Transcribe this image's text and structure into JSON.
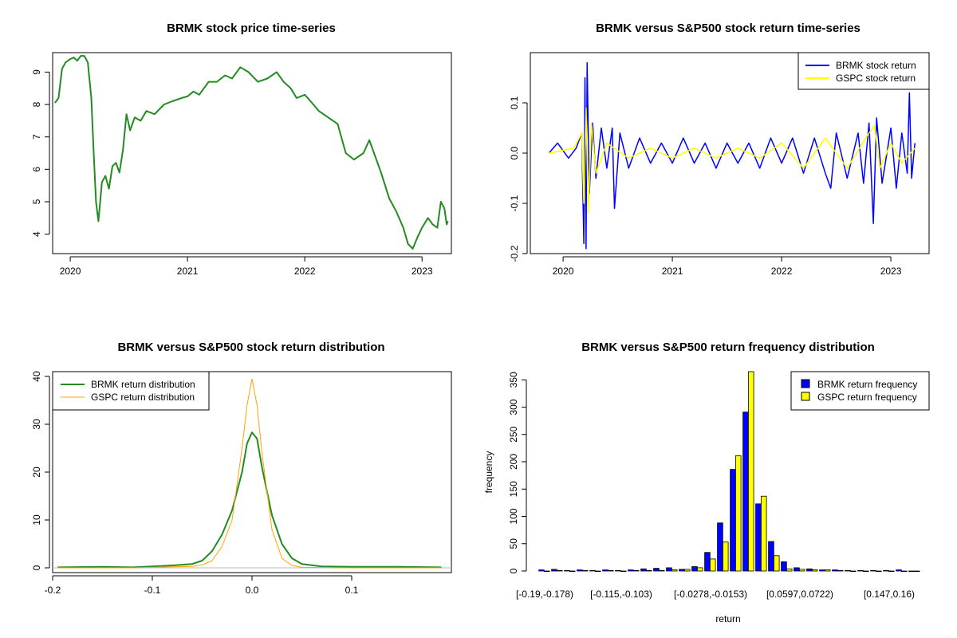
{
  "chart_data": [
    {
      "type": "line",
      "title": "BRMK stock price time-series",
      "xlabel": "",
      "ylabel": "",
      "xlim": [
        2019.85,
        2023.25
      ],
      "ylim": [
        3.4,
        9.6
      ],
      "x_ticks": [
        2020,
        2021,
        2022,
        2023
      ],
      "x_tick_labels": [
        "2020",
        "2021",
        "2022",
        "2023"
      ],
      "y_ticks": [
        4,
        5,
        6,
        7,
        8,
        9
      ],
      "y_tick_labels": [
        "4",
        "5",
        "6",
        "7",
        "8",
        "9"
      ],
      "series": [
        {
          "name": "BRMK price",
          "color": "#228B22",
          "points": [
            [
              2019.87,
              8.05
            ],
            [
              2019.9,
              8.2
            ],
            [
              2019.93,
              9.1
            ],
            [
              2019.96,
              9.3
            ],
            [
              2020.0,
              9.4
            ],
            [
              2020.03,
              9.45
            ],
            [
              2020.06,
              9.35
            ],
            [
              2020.09,
              9.5
            ],
            [
              2020.12,
              9.5
            ],
            [
              2020.15,
              9.3
            ],
            [
              2020.18,
              8.2
            ],
            [
              2020.2,
              6.5
            ],
            [
              2020.22,
              5.0
            ],
            [
              2020.24,
              4.4
            ],
            [
              2020.27,
              5.6
            ],
            [
              2020.3,
              5.8
            ],
            [
              2020.33,
              5.4
            ],
            [
              2020.36,
              6.1
            ],
            [
              2020.39,
              6.2
            ],
            [
              2020.42,
              5.9
            ],
            [
              2020.45,
              6.6
            ],
            [
              2020.48,
              7.7
            ],
            [
              2020.51,
              7.2
            ],
            [
              2020.55,
              7.6
            ],
            [
              2020.6,
              7.5
            ],
            [
              2020.65,
              7.8
            ],
            [
              2020.72,
              7.7
            ],
            [
              2020.8,
              8.0
            ],
            [
              2020.87,
              8.1
            ],
            [
              2020.95,
              8.2
            ],
            [
              2021.0,
              8.25
            ],
            [
              2021.05,
              8.4
            ],
            [
              2021.1,
              8.3
            ],
            [
              2021.18,
              8.7
            ],
            [
              2021.25,
              8.7
            ],
            [
              2021.32,
              8.9
            ],
            [
              2021.38,
              8.8
            ],
            [
              2021.45,
              9.15
            ],
            [
              2021.52,
              9.0
            ],
            [
              2021.6,
              8.7
            ],
            [
              2021.68,
              8.8
            ],
            [
              2021.76,
              9.0
            ],
            [
              2021.82,
              8.7
            ],
            [
              2021.88,
              8.5
            ],
            [
              2021.93,
              8.2
            ],
            [
              2022.0,
              8.3
            ],
            [
              2022.05,
              8.1
            ],
            [
              2022.12,
              7.8
            ],
            [
              2022.2,
              7.6
            ],
            [
              2022.28,
              7.4
            ],
            [
              2022.35,
              6.5
            ],
            [
              2022.42,
              6.3
            ],
            [
              2022.5,
              6.5
            ],
            [
              2022.55,
              6.9
            ],
            [
              2022.58,
              6.6
            ],
            [
              2022.65,
              5.9
            ],
            [
              2022.72,
              5.1
            ],
            [
              2022.78,
              4.7
            ],
            [
              2022.84,
              4.2
            ],
            [
              2022.88,
              3.7
            ],
            [
              2022.92,
              3.55
            ],
            [
              2022.96,
              3.9
            ],
            [
              2023.0,
              4.2
            ],
            [
              2023.05,
              4.5
            ],
            [
              2023.09,
              4.3
            ],
            [
              2023.13,
              4.2
            ],
            [
              2023.16,
              5.0
            ],
            [
              2023.19,
              4.8
            ],
            [
              2023.21,
              4.3
            ],
            [
              2023.22,
              4.4
            ]
          ]
        }
      ]
    },
    {
      "type": "line",
      "title": "BRMK versus S&P500 stock return time-series",
      "xlabel": "",
      "ylabel": "",
      "xlim": [
        2019.7,
        2023.35
      ],
      "ylim": [
        -0.2,
        0.2
      ],
      "x_ticks": [
        2020,
        2021,
        2022,
        2023
      ],
      "x_tick_labels": [
        "2020",
        "2021",
        "2022",
        "2023"
      ],
      "y_ticks": [
        -0.2,
        -0.1,
        0.0,
        0.1
      ],
      "y_tick_labels": [
        "-0.2",
        "-0.1",
        "0.0",
        "0.1"
      ],
      "legend": {
        "position": "top-right",
        "entries": [
          {
            "label": "BRMK stock return",
            "color": "#0000FF"
          },
          {
            "label": "GSPC stock return",
            "color": "#FFFF00"
          }
        ]
      },
      "series": [
        {
          "name": "BRMK stock return",
          "color": "#0000FF",
          "points": [
            [
              2019.87,
              0.0
            ],
            [
              2019.95,
              0.02
            ],
            [
              2020.05,
              -0.01
            ],
            [
              2020.12,
              0.01
            ],
            [
              2020.17,
              0.04
            ],
            [
              2020.19,
              -0.18
            ],
            [
              2020.2,
              0.15
            ],
            [
              2020.21,
              -0.19
            ],
            [
              2020.22,
              0.18
            ],
            [
              2020.24,
              -0.08
            ],
            [
              2020.27,
              0.06
            ],
            [
              2020.3,
              -0.05
            ],
            [
              2020.35,
              0.05
            ],
            [
              2020.4,
              -0.03
            ],
            [
              2020.45,
              0.05
            ],
            [
              2020.47,
              -0.11
            ],
            [
              2020.52,
              0.04
            ],
            [
              2020.6,
              -0.03
            ],
            [
              2020.7,
              0.03
            ],
            [
              2020.8,
              -0.02
            ],
            [
              2020.9,
              0.02
            ],
            [
              2021.0,
              -0.02
            ],
            [
              2021.1,
              0.03
            ],
            [
              2021.2,
              -0.02
            ],
            [
              2021.3,
              0.02
            ],
            [
              2021.4,
              -0.03
            ],
            [
              2021.5,
              0.02
            ],
            [
              2021.6,
              -0.02
            ],
            [
              2021.7,
              0.02
            ],
            [
              2021.8,
              -0.03
            ],
            [
              2021.9,
              0.03
            ],
            [
              2022.0,
              -0.02
            ],
            [
              2022.1,
              0.03
            ],
            [
              2022.2,
              -0.04
            ],
            [
              2022.3,
              0.03
            ],
            [
              2022.4,
              -0.04
            ],
            [
              2022.45,
              -0.07
            ],
            [
              2022.5,
              0.04
            ],
            [
              2022.6,
              -0.05
            ],
            [
              2022.7,
              0.04
            ],
            [
              2022.75,
              -0.06
            ],
            [
              2022.8,
              0.06
            ],
            [
              2022.84,
              -0.14
            ],
            [
              2022.87,
              0.07
            ],
            [
              2022.92,
              -0.06
            ],
            [
              2023.0,
              0.05
            ],
            [
              2023.05,
              -0.07
            ],
            [
              2023.1,
              0.04
            ],
            [
              2023.15,
              -0.04
            ],
            [
              2023.17,
              0.12
            ],
            [
              2023.19,
              -0.05
            ],
            [
              2023.22,
              0.02
            ]
          ]
        },
        {
          "name": "GSPC stock return",
          "color": "#FFFF00",
          "points": [
            [
              2019.87,
              0.0
            ],
            [
              2020.1,
              0.01
            ],
            [
              2020.17,
              0.04
            ],
            [
              2020.19,
              -0.1
            ],
            [
              2020.21,
              0.09
            ],
            [
              2020.23,
              -0.12
            ],
            [
              2020.26,
              0.06
            ],
            [
              2020.3,
              -0.04
            ],
            [
              2020.4,
              0.02
            ],
            [
              2020.6,
              -0.01
            ],
            [
              2020.8,
              0.01
            ],
            [
              2021.0,
              -0.01
            ],
            [
              2021.2,
              0.01
            ],
            [
              2021.4,
              -0.01
            ],
            [
              2021.6,
              0.01
            ],
            [
              2021.8,
              -0.01
            ],
            [
              2022.0,
              0.02
            ],
            [
              2022.2,
              -0.03
            ],
            [
              2022.4,
              0.03
            ],
            [
              2022.6,
              -0.03
            ],
            [
              2022.8,
              0.04
            ],
            [
              2022.85,
              0.055
            ],
            [
              2022.9,
              -0.03
            ],
            [
              2023.0,
              0.02
            ],
            [
              2023.1,
              -0.02
            ],
            [
              2023.22,
              0.01
            ]
          ]
        }
      ]
    },
    {
      "type": "line",
      "title": "BRMK versus S&P500 stock return distribution",
      "xlabel": "",
      "ylabel": "",
      "xlim": [
        -0.2,
        0.2
      ],
      "ylim": [
        -1,
        41
      ],
      "x_ticks": [
        -0.2,
        -0.1,
        0.0,
        0.1
      ],
      "x_tick_labels": [
        "-0.2",
        "-0.1",
        "0.0",
        "0.1"
      ],
      "y_ticks": [
        0,
        10,
        20,
        30,
        40
      ],
      "y_tick_labels": [
        "0",
        "10",
        "20",
        "30",
        "40"
      ],
      "legend": {
        "position": "top-left",
        "entries": [
          {
            "label": "BRMK return distribution",
            "color": "#228B22"
          },
          {
            "label": "GSPC return distribution",
            "color": "#FFA500"
          }
        ]
      },
      "series": [
        {
          "name": "BRMK return distribution",
          "color": "#228B22",
          "points": [
            [
              -0.195,
              0.1
            ],
            [
              -0.15,
              0.2
            ],
            [
              -0.12,
              0.1
            ],
            [
              -0.1,
              0.3
            ],
            [
              -0.08,
              0.5
            ],
            [
              -0.06,
              0.8
            ],
            [
              -0.05,
              1.5
            ],
            [
              -0.04,
              3.5
            ],
            [
              -0.03,
              7.0
            ],
            [
              -0.02,
              12.0
            ],
            [
              -0.01,
              20.0
            ],
            [
              -0.005,
              26.0
            ],
            [
              0.0,
              28.3
            ],
            [
              0.005,
              27.0
            ],
            [
              0.01,
              21.0
            ],
            [
              0.02,
              11.0
            ],
            [
              0.03,
              5.0
            ],
            [
              0.04,
              2.0
            ],
            [
              0.05,
              0.8
            ],
            [
              0.07,
              0.3
            ],
            [
              0.1,
              0.2
            ],
            [
              0.15,
              0.2
            ],
            [
              0.19,
              0.1
            ]
          ]
        },
        {
          "name": "GSPC return distribution",
          "color": "#FFA500",
          "points": [
            [
              -0.195,
              0.0
            ],
            [
              -0.12,
              0.0
            ],
            [
              -0.08,
              0.2
            ],
            [
              -0.06,
              0.3
            ],
            [
              -0.05,
              0.6
            ],
            [
              -0.04,
              1.5
            ],
            [
              -0.03,
              4.5
            ],
            [
              -0.02,
              10.0
            ],
            [
              -0.01,
              25.0
            ],
            [
              -0.005,
              34.0
            ],
            [
              0.0,
              39.5
            ],
            [
              0.005,
              34.0
            ],
            [
              0.01,
              24.0
            ],
            [
              0.02,
              8.0
            ],
            [
              0.03,
              2.0
            ],
            [
              0.04,
              0.5
            ],
            [
              0.05,
              0.1
            ],
            [
              0.1,
              0.0
            ],
            [
              0.19,
              0.0
            ]
          ]
        }
      ]
    },
    {
      "type": "bar",
      "title": "BRMK versus S&P500 return frequency distribution",
      "xlabel": "return",
      "ylabel": "frequency",
      "ylim": [
        0,
        365
      ],
      "y_ticks": [
        0,
        50,
        100,
        150,
        200,
        250,
        300,
        350
      ],
      "y_tick_labels": [
        "0",
        "50",
        "100",
        "150",
        "200",
        "250",
        "300",
        "350"
      ],
      "x_tick_labels": [
        "[-0.19,-0.178)",
        "[-0.115,-0.103)",
        "[-0.0278,-0.0153)",
        "[0.0597,0.0722)",
        "[0.147,0.16)"
      ],
      "x_tick_bins": [
        0,
        6,
        13,
        20,
        27
      ],
      "legend": {
        "position": "top-right",
        "entries": [
          {
            "label": "BRMK return frequency",
            "color": "#0000FF"
          },
          {
            "label": "GSPC return frequency",
            "color": "#FFFF00"
          }
        ]
      },
      "series": [
        {
          "name": "BRMK return frequency",
          "color": "#0000FF",
          "values": [
            2,
            3,
            1,
            2,
            1,
            2,
            1,
            2,
            4,
            5,
            6,
            3,
            8,
            34,
            88,
            186,
            291,
            123,
            54,
            17,
            6,
            4,
            2,
            2,
            1,
            1,
            1,
            1,
            2,
            0
          ]
        },
        {
          "name": "GSPC return frequency",
          "color": "#FFFF00",
          "values": [
            0,
            1,
            0,
            1,
            0,
            1,
            0,
            1,
            1,
            1,
            2,
            3,
            6,
            22,
            53,
            211,
            365,
            137,
            28,
            4,
            3,
            2,
            2,
            1,
            0,
            0,
            0,
            0,
            0,
            0
          ]
        }
      ]
    }
  ]
}
